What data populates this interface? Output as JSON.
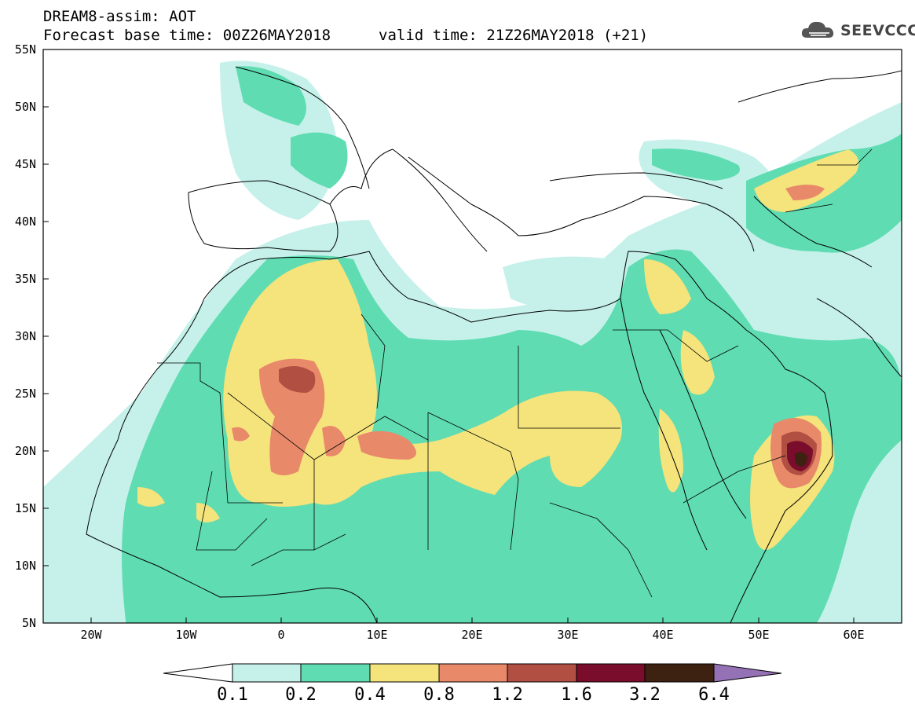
{
  "header": {
    "title": "DREAM8-assim: AOT",
    "base_time": "Forecast base time: 00Z26MAY2018",
    "valid_time": "valid time: 21Z26MAY2018 (+21)",
    "logo_text": "SEEVCCC"
  },
  "map": {
    "projection": "lat-lon",
    "lon_range": [
      -25,
      65
    ],
    "lat_range": [
      5,
      55
    ],
    "lat_labels": [
      "55N",
      "50N",
      "45N",
      "40N",
      "35N",
      "30N",
      "25N",
      "20N",
      "15N",
      "10N",
      "5N"
    ],
    "lon_labels": [
      "20W",
      "10W",
      "0",
      "10E",
      "20E",
      "30E",
      "40E",
      "50E",
      "60E"
    ],
    "field": "Aerosol optical thickness (AOT)"
  },
  "colorbar": {
    "labels": [
      "0.1",
      "0.2",
      "0.4",
      "0.8",
      "1.2",
      "1.6",
      "3.2",
      "6.4"
    ],
    "colors": [
      "#ffffff",
      "#c5f1ea",
      "#5fdcb1",
      "#f5e37c",
      "#e8896a",
      "#b14f43",
      "#7a0c2c",
      "#3d2212",
      "#9572b6"
    ]
  },
  "colors": {
    "c1": "#c5f1ea",
    "c2": "#5fdcb1",
    "c3": "#f5e37c",
    "c4": "#e8896a",
    "c5": "#b14f43",
    "c6": "#7a0c2c",
    "c7": "#3d2212"
  }
}
